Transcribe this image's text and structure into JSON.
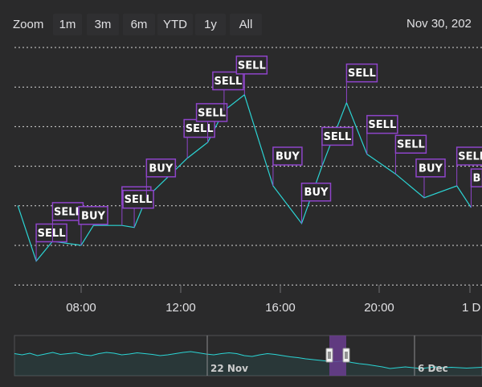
{
  "toolbar": {
    "zoom_label": "Zoom",
    "buttons": [
      "1m",
      "3m",
      "6m",
      "YTD",
      "1y",
      "All"
    ],
    "date_range_text": "Nov 30, 202"
  },
  "colors": {
    "background": "#2a2a2b",
    "line": "#2bd4d4",
    "flag_border": "#8e44c9",
    "flag_fill": "#2a2a2b",
    "grid": "#d6d6d6",
    "navigator_mask": "#6a3d8f"
  },
  "chart_data": {
    "type": "line",
    "title": "",
    "xlabel": "",
    "ylabel": "",
    "x_ticks": [
      "08:00",
      "12:00",
      "16:00",
      "20:00",
      "1 D"
    ],
    "grid": true,
    "y_grid_lines": 7,
    "series": [
      {
        "points": [
          {
            "t": "05:25",
            "v": 2.0
          },
          {
            "t": "06:10",
            "v": 0.6
          },
          {
            "t": "06:50",
            "v": 1.1
          },
          {
            "t": "08:00",
            "v": 1.0
          },
          {
            "t": "08:30",
            "v": 1.5
          },
          {
            "t": "09:40",
            "v": 1.5
          },
          {
            "t": "10:10",
            "v": 1.45
          },
          {
            "t": "10:40",
            "v": 2.2
          },
          {
            "t": "11:30",
            "v": 2.7
          },
          {
            "t": "12:20",
            "v": 3.2
          },
          {
            "t": "13:10",
            "v": 3.6
          },
          {
            "t": "13:50",
            "v": 4.4
          },
          {
            "t": "14:40",
            "v": 4.8
          },
          {
            "t": "15:50",
            "v": 2.5
          },
          {
            "t": "17:00",
            "v": 1.55
          },
          {
            "t": "17:50",
            "v": 3.0
          },
          {
            "t": "18:50",
            "v": 4.6
          },
          {
            "t": "19:40",
            "v": 3.3
          },
          {
            "t": "20:50",
            "v": 2.8
          },
          {
            "t": "22:00",
            "v": 2.2
          },
          {
            "t": "23:20",
            "v": 2.5
          },
          {
            "t": "23:55",
            "v": 1.95
          }
        ]
      }
    ],
    "flags": [
      {
        "title": "SELL",
        "t": "06:10"
      },
      {
        "title": "SELL",
        "t": "06:50"
      },
      {
        "title": "BUY",
        "t": "08:00"
      },
      {
        "title": "BUY",
        "t": "09:40"
      },
      {
        "title": "SELL",
        "t": "10:10"
      },
      {
        "title": "BUY",
        "t": "10:40"
      },
      {
        "title": "SELL",
        "t": "12:20"
      },
      {
        "title": "SELL",
        "t": "13:10"
      },
      {
        "title": "SELL",
        "t": "13:50"
      },
      {
        "title": "SELL",
        "t": "14:40"
      },
      {
        "title": "BUY",
        "t": "15:50"
      },
      {
        "title": "BUY",
        "t": "17:00"
      },
      {
        "title": "SELL",
        "t": "17:50"
      },
      {
        "title": "SELL",
        "t": "18:50"
      },
      {
        "title": "SELL",
        "t": "19:40"
      },
      {
        "title": "SELL",
        "t": "20:50"
      },
      {
        "title": "BUY",
        "t": "22:00"
      },
      {
        "title": "SELL",
        "t": "23:20"
      },
      {
        "title": "B",
        "t": "23:55"
      }
    ],
    "navigator": {
      "labels": [
        "22 Nov",
        "6 Dec"
      ],
      "series": [
        0.55,
        0.52,
        0.56,
        0.5,
        0.54,
        0.58,
        0.53,
        0.55,
        0.57,
        0.52,
        0.5,
        0.55,
        0.58,
        0.56,
        0.52,
        0.54,
        0.57,
        0.55,
        0.53,
        0.5,
        0.52,
        0.55,
        0.58,
        0.6,
        0.57,
        0.54,
        0.52,
        0.55,
        0.57,
        0.55,
        0.5,
        0.48,
        0.52,
        0.55,
        0.53,
        0.5,
        0.47,
        0.45,
        0.42,
        0.4,
        0.38,
        0.36,
        0.35,
        0.37,
        0.33,
        0.3,
        0.28,
        0.25,
        0.22,
        0.18,
        0.2,
        0.22,
        0.2,
        0.18,
        0.2,
        0.22,
        0.2,
        0.21,
        0.2,
        0.19,
        0.2,
        0.21
      ]
    }
  }
}
